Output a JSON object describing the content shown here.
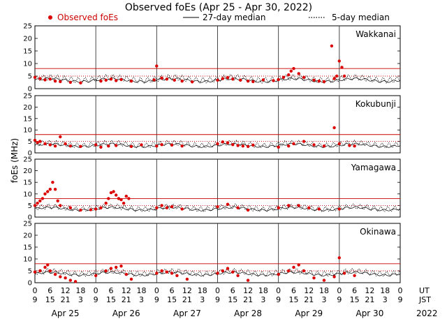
{
  "chart_data": {
    "type": "scatter",
    "title": "Observed foEs (Apr 25 - Apr 30, 2022)",
    "ylabel": "foEs (MHz)",
    "legend": [
      {
        "label": "Observed foEs",
        "style": "red-dots"
      },
      {
        "label": "27-day median",
        "style": "solid-line"
      },
      {
        "label": "5-day median",
        "style": "dotted-line"
      }
    ],
    "ylim": [
      0,
      25
    ],
    "yticks": [
      0,
      5,
      10,
      15,
      20,
      25
    ],
    "xlim_hours_ut": [
      0,
      144
    ],
    "x_tick_ut": [
      "0",
      "6",
      "12",
      "18",
      "0",
      "6",
      "12",
      "18",
      "0",
      "6",
      "12",
      "18",
      "0",
      "6",
      "12",
      "18",
      "0",
      "6",
      "12",
      "18",
      "0",
      "6",
      "12",
      "18",
      "0"
    ],
    "x_tick_jst": [
      "9",
      "15",
      "21",
      "3",
      "9",
      "15",
      "21",
      "3",
      "9",
      "15",
      "21",
      "3",
      "9",
      "15",
      "21",
      "3",
      "9",
      "15",
      "21",
      "3",
      "9",
      "15",
      "21",
      "3",
      "9"
    ],
    "day_labels": [
      "Apr 25",
      "Apr 26",
      "Apr 27",
      "Apr 28",
      "Apr 29",
      "Apr 30"
    ],
    "axis_row_labels": {
      "ut": "UT",
      "jst": "JST",
      "year": "2022"
    },
    "reference_lines_mhz": [
      {
        "value": 5,
        "style": "dotted-red"
      },
      {
        "value": 8,
        "style": "solid-red"
      }
    ],
    "panels": [
      {
        "station": "Wakkanai",
        "median27": 3.4,
        "median5": 3.9,
        "observed": [
          {
            "t": 0,
            "v": 4.5
          },
          {
            "t": 2,
            "v": 4.0
          },
          {
            "t": 4,
            "v": 3.5
          },
          {
            "t": 6,
            "v": 3.8
          },
          {
            "t": 8,
            "v": 3.0
          },
          {
            "t": 10,
            "v": 2.8
          },
          {
            "t": 14,
            "v": 2.5
          },
          {
            "t": 18,
            "v": 2.3
          },
          {
            "t": 26,
            "v": 3.0
          },
          {
            "t": 28,
            "v": 3.4
          },
          {
            "t": 30,
            "v": 3.8
          },
          {
            "t": 32,
            "v": 3.2
          },
          {
            "t": 34,
            "v": 3.6
          },
          {
            "t": 38,
            "v": 3.0
          },
          {
            "t": 47,
            "v": 3.5
          },
          {
            "t": 48,
            "v": 9.0
          },
          {
            "t": 50,
            "v": 4.2
          },
          {
            "t": 52,
            "v": 3.8
          },
          {
            "t": 55,
            "v": 3.4
          },
          {
            "t": 58,
            "v": 3.0
          },
          {
            "t": 62,
            "v": 2.7
          },
          {
            "t": 72,
            "v": 3.4
          },
          {
            "t": 74,
            "v": 4.0
          },
          {
            "t": 76,
            "v": 4.4
          },
          {
            "t": 78,
            "v": 3.8
          },
          {
            "t": 81,
            "v": 3.4
          },
          {
            "t": 84,
            "v": 3.0
          },
          {
            "t": 86,
            "v": 2.8
          },
          {
            "t": 90,
            "v": 3.5
          },
          {
            "t": 94,
            "v": 3.2
          },
          {
            "t": 96,
            "v": 3.6
          },
          {
            "t": 98,
            "v": 4.5
          },
          {
            "t": 100,
            "v": 5.5
          },
          {
            "t": 101,
            "v": 7.0
          },
          {
            "t": 102,
            "v": 8.0
          },
          {
            "t": 104,
            "v": 6.0
          },
          {
            "t": 106,
            "v": 4.5
          },
          {
            "t": 110,
            "v": 3.4
          },
          {
            "t": 112,
            "v": 3.0
          },
          {
            "t": 114,
            "v": 2.8
          },
          {
            "t": 117,
            "v": 17.0
          },
          {
            "t": 118,
            "v": 4.0
          },
          {
            "t": 119,
            "v": 5.0
          },
          {
            "t": 120,
            "v": 11.0
          },
          {
            "t": 121,
            "v": 8.5
          },
          {
            "t": 122,
            "v": 5.0
          }
        ]
      },
      {
        "station": "Kokubunji",
        "median27": 3.3,
        "median5": 3.8,
        "observed": [
          {
            "t": 0,
            "v": 5.5
          },
          {
            "t": 1,
            "v": 4.5
          },
          {
            "t": 2,
            "v": 5.0
          },
          {
            "t": 4,
            "v": 4.0
          },
          {
            "t": 6,
            "v": 3.5
          },
          {
            "t": 8,
            "v": 3.0
          },
          {
            "t": 10,
            "v": 7.0
          },
          {
            "t": 12,
            "v": 4.0
          },
          {
            "t": 14,
            "v": 3.0
          },
          {
            "t": 18,
            "v": 2.8
          },
          {
            "t": 24,
            "v": 3.5
          },
          {
            "t": 26,
            "v": 2.5
          },
          {
            "t": 29,
            "v": 3.0
          },
          {
            "t": 32,
            "v": 3.2
          },
          {
            "t": 38,
            "v": 2.8
          },
          {
            "t": 42,
            "v": 3.5
          },
          {
            "t": 48,
            "v": 3.0
          },
          {
            "t": 50,
            "v": 3.6
          },
          {
            "t": 54,
            "v": 3.4
          },
          {
            "t": 58,
            "v": 3.0
          },
          {
            "t": 72,
            "v": 4.0
          },
          {
            "t": 74,
            "v": 4.8
          },
          {
            "t": 76,
            "v": 4.4
          },
          {
            "t": 78,
            "v": 3.6
          },
          {
            "t": 80,
            "v": 3.2
          },
          {
            "t": 82,
            "v": 3.0
          },
          {
            "t": 84,
            "v": 2.8
          },
          {
            "t": 86,
            "v": 3.4
          },
          {
            "t": 96,
            "v": 2.5
          },
          {
            "t": 100,
            "v": 3.0
          },
          {
            "t": 102,
            "v": 4.0
          },
          {
            "t": 106,
            "v": 5.0
          },
          {
            "t": 110,
            "v": 3.5
          },
          {
            "t": 114,
            "v": 3.0
          },
          {
            "t": 118,
            "v": 11.0
          },
          {
            "t": 120,
            "v": 4.0
          },
          {
            "t": 124,
            "v": 3.2
          },
          {
            "t": 126,
            "v": 3.0
          }
        ]
      },
      {
        "station": "Yamagawa",
        "median27": 3.6,
        "median5": 4.0,
        "observed": [
          {
            "t": 0,
            "v": 5.0
          },
          {
            "t": 1,
            "v": 6.0
          },
          {
            "t": 2,
            "v": 7.0
          },
          {
            "t": 3,
            "v": 8.0
          },
          {
            "t": 4,
            "v": 10.0
          },
          {
            "t": 5,
            "v": 11.0
          },
          {
            "t": 6,
            "v": 12.0
          },
          {
            "t": 7,
            "v": 15.0
          },
          {
            "t": 8,
            "v": 12.0
          },
          {
            "t": 9,
            "v": 7.0
          },
          {
            "t": 10,
            "v": 5.0
          },
          {
            "t": 14,
            "v": 4.0
          },
          {
            "t": 18,
            "v": 3.0
          },
          {
            "t": 22,
            "v": 3.2
          },
          {
            "t": 24,
            "v": 3.5
          },
          {
            "t": 26,
            "v": 4.0
          },
          {
            "t": 28,
            "v": 6.0
          },
          {
            "t": 29,
            "v": 8.0
          },
          {
            "t": 30,
            "v": 10.5
          },
          {
            "t": 31,
            "v": 11.0
          },
          {
            "t": 32,
            "v": 9.5
          },
          {
            "t": 33,
            "v": 8.0
          },
          {
            "t": 34,
            "v": 7.5
          },
          {
            "t": 35,
            "v": 6.0
          },
          {
            "t": 36,
            "v": 9.0
          },
          {
            "t": 37,
            "v": 8.0
          },
          {
            "t": 48,
            "v": 4.0
          },
          {
            "t": 50,
            "v": 5.0
          },
          {
            "t": 52,
            "v": 4.0
          },
          {
            "t": 54,
            "v": 4.5
          },
          {
            "t": 58,
            "v": 3.5
          },
          {
            "t": 72,
            "v": 4.5
          },
          {
            "t": 76,
            "v": 5.5
          },
          {
            "t": 80,
            "v": 4.0
          },
          {
            "t": 84,
            "v": 3.0
          },
          {
            "t": 96,
            "v": 4.0
          },
          {
            "t": 100,
            "v": 5.0
          },
          {
            "t": 104,
            "v": 5.0
          },
          {
            "t": 108,
            "v": 4.0
          },
          {
            "t": 112,
            "v": 3.5
          },
          {
            "t": 120,
            "v": 3.5
          }
        ]
      },
      {
        "station": "Okinawa",
        "median27": 3.8,
        "median5": 4.3,
        "observed": [
          {
            "t": 0,
            "v": 4.5
          },
          {
            "t": 2,
            "v": 5.0
          },
          {
            "t": 4,
            "v": 6.5
          },
          {
            "t": 5,
            "v": 7.5
          },
          {
            "t": 6,
            "v": 5.0
          },
          {
            "t": 8,
            "v": 3.5
          },
          {
            "t": 10,
            "v": 2.5
          },
          {
            "t": 12,
            "v": 2.0
          },
          {
            "t": 14,
            "v": 1.0
          },
          {
            "t": 16,
            "v": 0.5
          },
          {
            "t": 24,
            "v": 3.0
          },
          {
            "t": 28,
            "v": 5.0
          },
          {
            "t": 30,
            "v": 6.0
          },
          {
            "t": 32,
            "v": 6.5
          },
          {
            "t": 34,
            "v": 7.0
          },
          {
            "t": 36,
            "v": 3.5
          },
          {
            "t": 38,
            "v": 1.5
          },
          {
            "t": 48,
            "v": 4.0
          },
          {
            "t": 50,
            "v": 5.0
          },
          {
            "t": 52,
            "v": 4.5
          },
          {
            "t": 54,
            "v": 4.0
          },
          {
            "t": 56,
            "v": 3.0
          },
          {
            "t": 60,
            "v": 1.5
          },
          {
            "t": 72,
            "v": 4.0
          },
          {
            "t": 74,
            "v": 5.0
          },
          {
            "t": 76,
            "v": 6.0
          },
          {
            "t": 78,
            "v": 4.5
          },
          {
            "t": 80,
            "v": 3.0
          },
          {
            "t": 84,
            "v": 1.0
          },
          {
            "t": 96,
            "v": 3.5
          },
          {
            "t": 100,
            "v": 5.0
          },
          {
            "t": 102,
            "v": 6.5
          },
          {
            "t": 104,
            "v": 7.5
          },
          {
            "t": 106,
            "v": 5.0
          },
          {
            "t": 110,
            "v": 2.0
          },
          {
            "t": 114,
            "v": 1.0
          },
          {
            "t": 118,
            "v": 2.5
          },
          {
            "t": 120,
            "v": 10.5
          },
          {
            "t": 122,
            "v": 4.0
          },
          {
            "t": 126,
            "v": 3.0
          }
        ]
      }
    ]
  },
  "colors": {
    "observed": "#dd0000",
    "reference": "#cc0000",
    "median": "#000000",
    "day_line": "#333333",
    "grid": "#888888"
  }
}
